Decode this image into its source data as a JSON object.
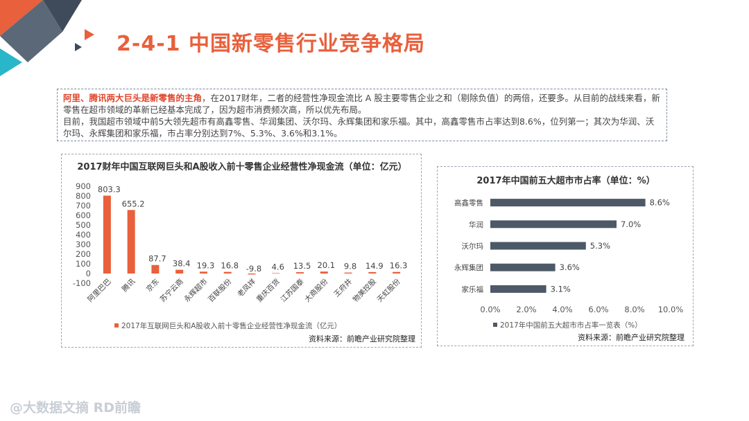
{
  "title": "2-4-1 中国新零售行业竞争格局",
  "intro": {
    "highlight": "阿里、腾讯两大巨头是新零售的主角",
    "text1": "，在2017财年，二者的经营性净现金流比 A 股主要零售企业之和（剔除负值）的两倍，还要多。从目前的战线来看，新零售在超市领域的革新已经基本完成了，因为超市消费频次高，所以优先布局。",
    "text2": "目前，我国超市领域中前5大领先超市有高鑫零售、华润集团、沃尔玛、永辉集团和家乐福。其中，高鑫零售市占率达到8.6%，位列第一；其次为华润、沃尔玛、永辉集团和家乐福，市占率分别达到7%、5.3%、3.6%和3.1%。"
  },
  "footer": {
    "logo_text": "@大数据文摘 RD前瞻"
  },
  "colors": {
    "accent": "#e8603c",
    "bar_left": "#e8603c",
    "bar_right": "#4d5966"
  },
  "chart_data": [
    {
      "type": "bar",
      "title": "2017财年中国互联网巨头和A股收入前十零售企业经营性净现金流（单位：亿元）",
      "categories": [
        "阿里巴巴",
        "腾讯",
        "京东",
        "苏宁云商",
        "永辉超市",
        "百联股份",
        "老凤祥",
        "重庆百货",
        "江苏国泰",
        "大商股份",
        "王府井",
        "物美控股",
        "天虹股份"
      ],
      "values": [
        803.3,
        655.2,
        87.7,
        38.4,
        19.3,
        16.8,
        -9.8,
        4.6,
        13.5,
        20.1,
        9.8,
        14.9,
        16.3
      ],
      "data_labels": [
        "803.3",
        "655.2",
        "87.7",
        "38.4",
        "19.3",
        "16.8",
        "-9.8",
        "4.6",
        "13.5",
        "20.1",
        "9.8",
        "14.9",
        "16.3"
      ],
      "series": [
        {
          "name": "2017年互联网巨头和A股收入前十零售企业经营性净现金流（亿元）"
        }
      ],
      "ylim": [
        -100,
        900
      ],
      "yticks": [
        "-100",
        "0",
        "100",
        "200",
        "300",
        "400",
        "500",
        "600",
        "700",
        "800",
        "900"
      ],
      "legend": "bottom-left",
      "source": "资料来源：前瞻产业研究院整理"
    },
    {
      "type": "bar",
      "orientation": "horizontal",
      "title": "2017年中国前五大超市市占率（单位：%）",
      "categories": [
        "高鑫零售",
        "华润",
        "沃尔玛",
        "永辉集团",
        "家乐福"
      ],
      "values": [
        8.6,
        7.0,
        5.3,
        3.6,
        3.1
      ],
      "data_labels": [
        "8.6%",
        "7.0%",
        "5.3%",
        "3.6%",
        "3.1%"
      ],
      "series": [
        {
          "name": "2017年中国前五大超市市占率一览表（%）"
        }
      ],
      "xlim": [
        0,
        10
      ],
      "xticks": [
        "0.0%",
        "2.0%",
        "4.0%",
        "6.0%",
        "8.0%",
        "10.0%"
      ],
      "legend": "bottom",
      "source": "资料来源：前瞻产业研究院整理"
    }
  ]
}
